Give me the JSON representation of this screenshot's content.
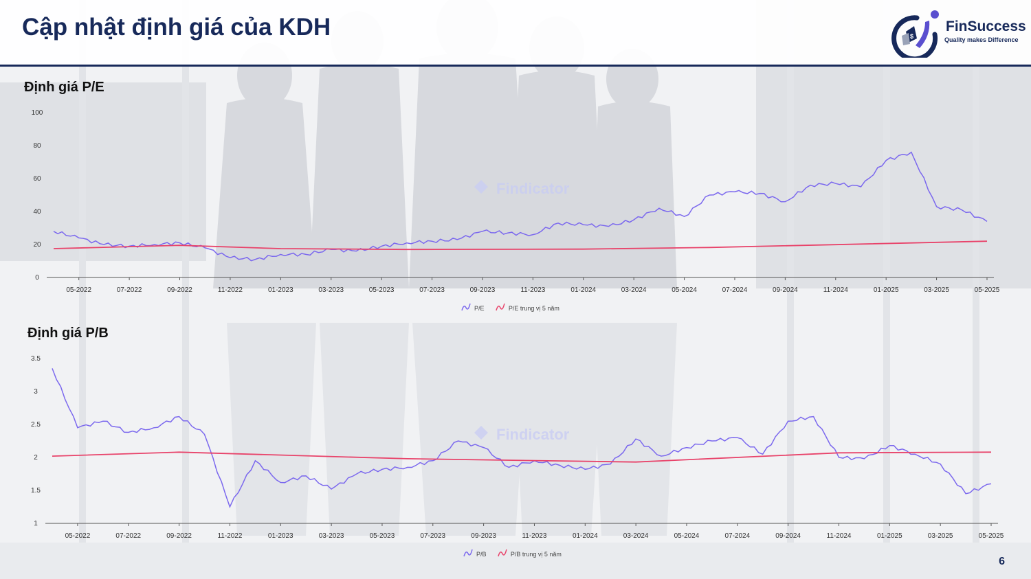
{
  "header": {
    "title": "Cập nhật định giá của KDH"
  },
  "logo": {
    "name": "FinSuccess",
    "tagline": "Quality makes Difference"
  },
  "watermark": "Findicator",
  "colors": {
    "series": "#7b68ee",
    "median": "#e8436a",
    "title": "#17295a",
    "grid": "#d0d3d8"
  },
  "page_number": "6",
  "chart_data": [
    {
      "type": "line",
      "title": "Định giá P/E",
      "xlabel": "",
      "ylabel": "",
      "ylim": [
        0,
        100
      ],
      "yticks": [
        "0",
        "20",
        "40",
        "60",
        "80",
        "100"
      ],
      "x_ticks": [
        "05-2022",
        "07-2022",
        "09-2022",
        "11-2022",
        "01-2023",
        "03-2023",
        "05-2023",
        "07-2023",
        "09-2023",
        "11-2023",
        "01-2024",
        "03-2024",
        "05-2024",
        "07-2024",
        "09-2024",
        "11-2024",
        "01-2025",
        "03-2025",
        "05-2025"
      ],
      "x_range": [
        "2022-04",
        "2025-05"
      ],
      "legend": "bottom-center",
      "series": [
        {
          "name": "P/E",
          "x": [
            "2022-04",
            "2022-05",
            "2022-06",
            "2022-07",
            "2022-08",
            "2022-09",
            "2022-10",
            "2022-11",
            "2022-12",
            "2023-01",
            "2023-02",
            "2023-03",
            "2023-04",
            "2023-05",
            "2023-06",
            "2023-07",
            "2023-08",
            "2023-09",
            "2023-10",
            "2023-11",
            "2023-12",
            "2024-01",
            "2024-02",
            "2024-03",
            "2024-04",
            "2024-05",
            "2024-06",
            "2024-07",
            "2024-08",
            "2024-09",
            "2024-10",
            "2024-11",
            "2024-12",
            "2025-01",
            "2025-02",
            "2025-03",
            "2025-04",
            "2025-05"
          ],
          "values": [
            28,
            24,
            20,
            19,
            20,
            21,
            18,
            12,
            11,
            14,
            14,
            17,
            16,
            19,
            21,
            22,
            23,
            28,
            27,
            26,
            33,
            32,
            31,
            35,
            42,
            37,
            50,
            52,
            51,
            46,
            56,
            57,
            55,
            71,
            76,
            43,
            41,
            34
          ]
        },
        {
          "name": "P/E trung vị 5 năm",
          "x": [
            "2022-04",
            "2022-09",
            "2023-01",
            "2023-06",
            "2024-01",
            "2024-06",
            "2025-05"
          ],
          "values": [
            17.5,
            19.5,
            17.5,
            17,
            17.2,
            18.2,
            22
          ]
        }
      ]
    },
    {
      "type": "line",
      "title": "Định giá P/B",
      "xlabel": "",
      "ylabel": "",
      "ylim": [
        1,
        3.5
      ],
      "yticks": [
        "1",
        "1.5",
        "2",
        "2.5",
        "3",
        "3.5"
      ],
      "x_ticks": [
        "05-2022",
        "07-2022",
        "09-2022",
        "11-2022",
        "01-2023",
        "03-2023",
        "05-2023",
        "07-2023",
        "09-2023",
        "11-2023",
        "01-2024",
        "03-2024",
        "05-2024",
        "07-2024",
        "09-2024",
        "11-2024",
        "01-2025",
        "03-2025",
        "05-2025"
      ],
      "x_range": [
        "2022-04",
        "2025-05"
      ],
      "legend": "bottom-center",
      "series": [
        {
          "name": "P/B",
          "x": [
            "2022-04",
            "2022-05",
            "2022-06",
            "2022-07",
            "2022-08",
            "2022-09",
            "2022-10",
            "2022-11",
            "2022-12",
            "2023-01",
            "2023-02",
            "2023-03",
            "2023-04",
            "2023-05",
            "2023-06",
            "2023-07",
            "2023-08",
            "2023-09",
            "2023-10",
            "2023-11",
            "2023-12",
            "2024-01",
            "2024-02",
            "2024-03",
            "2024-04",
            "2024-05",
            "2024-06",
            "2024-07",
            "2024-08",
            "2024-09",
            "2024-10",
            "2024-11",
            "2024-12",
            "2025-01",
            "2025-02",
            "2025-03",
            "2025-04",
            "2025-05"
          ],
          "values": [
            3.35,
            2.45,
            2.55,
            2.38,
            2.45,
            2.62,
            2.35,
            1.25,
            1.95,
            1.62,
            1.72,
            1.52,
            1.75,
            1.82,
            1.85,
            1.95,
            2.25,
            2.15,
            1.85,
            1.95,
            1.88,
            1.82,
            1.9,
            2.28,
            2.02,
            2.15,
            2.25,
            2.3,
            2.05,
            2.55,
            2.62,
            2.0,
            1.98,
            2.18,
            2.05,
            1.9,
            1.45,
            1.6
          ]
        },
        {
          "name": "P/B trung vị 5 năm",
          "x": [
            "2022-04",
            "2022-09",
            "2023-06",
            "2024-03",
            "2024-11",
            "2025-05"
          ],
          "values": [
            2.02,
            2.08,
            1.98,
            1.93,
            2.07,
            2.08
          ]
        }
      ]
    }
  ]
}
